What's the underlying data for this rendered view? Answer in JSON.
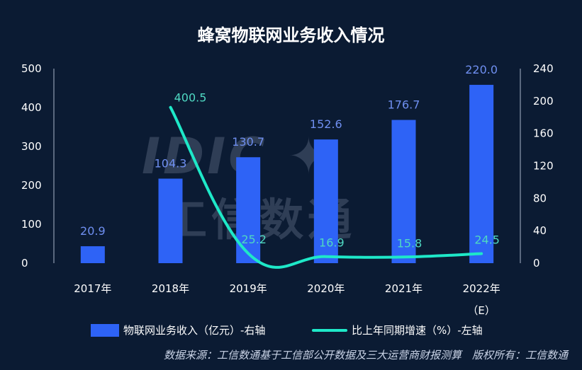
{
  "chart_data": {
    "type": "bar",
    "title": "蜂窝物联网业务收入情况",
    "categories": [
      "2017年",
      "2018年",
      "2019年",
      "2020年",
      "2021年",
      "2022年"
    ],
    "category_notes": [
      "",
      "",
      "",
      "",
      "",
      "（E）"
    ],
    "left_axis": {
      "ticks": [
        "500",
        "400",
        "300",
        "200",
        "100",
        "0"
      ],
      "range": [
        0,
        500
      ]
    },
    "right_axis": {
      "ticks": [
        "240",
        "200",
        "160",
        "120",
        "80",
        "40",
        "0"
      ],
      "range": [
        0,
        240
      ]
    },
    "series": [
      {
        "name": "物联网业务收入（亿元）-右轴",
        "kind": "bar",
        "axis": "right",
        "color": "#2e63f6",
        "values": [
          20.9,
          104.3,
          130.7,
          152.6,
          176.7,
          220.0
        ],
        "labels": [
          "20.9",
          "104.3",
          "130.7",
          "152.6",
          "176.7",
          "220.0"
        ]
      },
      {
        "name": "比上年同期增速（%）-左轴",
        "kind": "line",
        "axis": "left",
        "color": "#1ee8c8",
        "values": [
          null,
          400.5,
          25.2,
          16.9,
          15.8,
          24.5
        ],
        "labels": [
          "",
          "400.5",
          "25.2",
          "16.9",
          "15.8",
          "24.5"
        ]
      }
    ],
    "legend_position": "bottom",
    "grid": false
  },
  "watermark": {
    "logo": "IDIC",
    "text": "工信数通"
  },
  "source": "数据来源：工信数通基于工信部公开数据及三大运营商财报测算　版权所有：工信数通"
}
